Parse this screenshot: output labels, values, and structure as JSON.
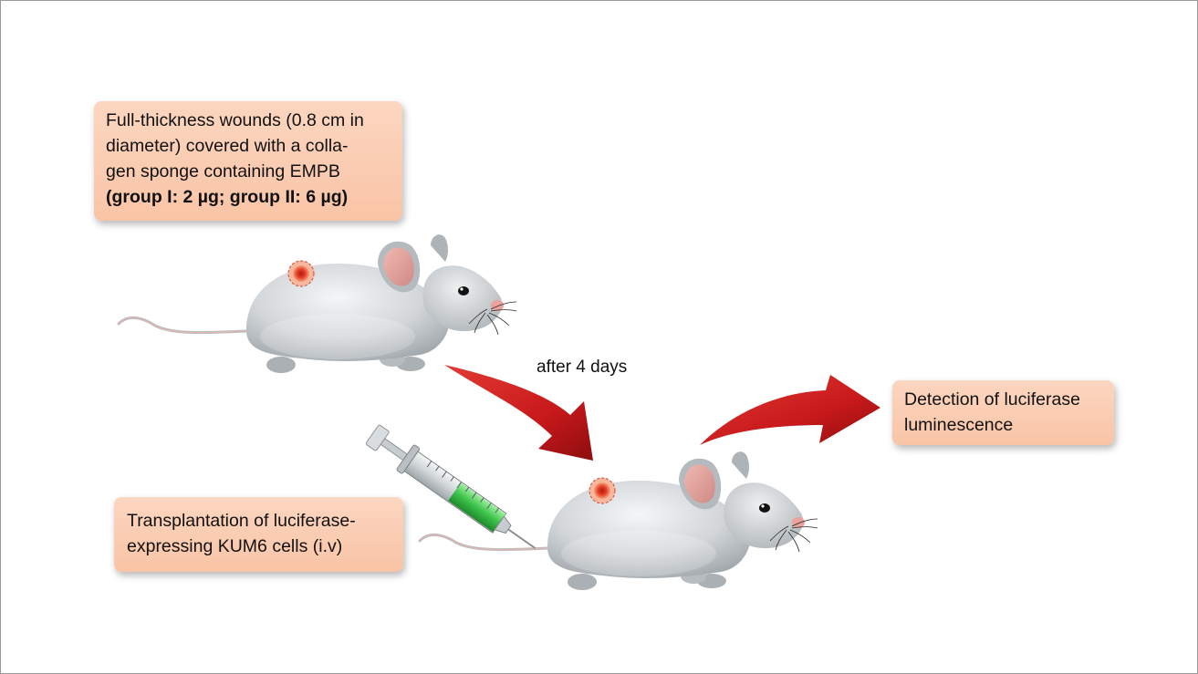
{
  "wound_box": {
    "line1": "Full-thickness wounds (0.8 cm in",
    "line2": "diameter) covered with a colla-",
    "line3": "gen sponge containing EMPB",
    "line4": "(group I: 2 µg; group II: 6 µg)"
  },
  "transplant_box": {
    "line1": "Transplantation of luciferase-",
    "line2": "expressing KUM6 cells (i.v)"
  },
  "detection_box": {
    "line1": "Detection of luciferase",
    "line2": "luminescence"
  },
  "timing_label": "after 4 days",
  "icons": [
    "mouse-icon",
    "wound-icon",
    "syringe-icon",
    "arrow-icon"
  ],
  "colors": {
    "box_fill": "#f9c4a6",
    "mouse_body": "#c3c8cc",
    "ear_inner": "#e3a6a0",
    "wound": "#e8432a",
    "arrow": "#c8191b",
    "syringe_fluid": "#3cc24a"
  }
}
